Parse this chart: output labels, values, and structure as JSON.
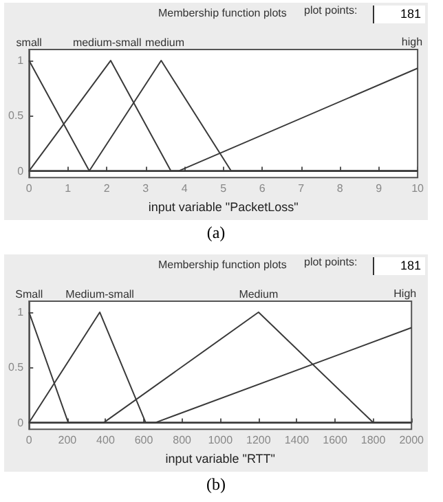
{
  "chart_data": [
    {
      "type": "line",
      "title": "Membership function plots",
      "xlabel": "input variable \"PacketLoss\"",
      "annotations": [
        "plot points:",
        "181",
        "(a)"
      ],
      "xlim": [
        0,
        10
      ],
      "xticks": [
        0,
        1,
        2,
        3,
        4,
        5,
        6,
        7,
        8,
        9,
        10
      ],
      "ylim": [
        -0.06,
        1.1
      ],
      "yticks": [
        0,
        0.5,
        1
      ],
      "series": [
        {
          "name": "small",
          "color": "#3a3a3a",
          "x": [
            0,
            1.55,
            10
          ],
          "values": [
            1,
            0,
            0
          ]
        },
        {
          "name": "medium-small",
          "color": "#3a3a3a",
          "x": [
            0,
            2.1,
            3.65,
            10
          ],
          "values": [
            0,
            1,
            0,
            0
          ]
        },
        {
          "name": "medium",
          "color": "#3a3a3a",
          "x": [
            0,
            1.55,
            3.4,
            5.2,
            10
          ],
          "values": [
            0,
            0,
            1,
            0,
            0
          ]
        },
        {
          "name": "high",
          "color": "#3a3a3a",
          "x": [
            0,
            3.85,
            10
          ],
          "values": [
            0,
            0,
            0.93
          ]
        }
      ]
    },
    {
      "type": "line",
      "title": "Membership function plots",
      "xlabel": "input variable \"RTT\"",
      "annotations": [
        "plot points:",
        "181",
        "(b)"
      ],
      "xlim": [
        0,
        2000
      ],
      "xticks": [
        0,
        200,
        400,
        600,
        800,
        1000,
        1200,
        1400,
        1600,
        1800,
        2000
      ],
      "ylim": [
        -0.06,
        1.1
      ],
      "yticks": [
        0,
        0.5,
        1
      ],
      "series": [
        {
          "name": "Small",
          "color": "#3a3a3a",
          "x": [
            0,
            205,
            2000
          ],
          "values": [
            1,
            0,
            0
          ]
        },
        {
          "name": "Medium-small",
          "color": "#3a3a3a",
          "x": [
            0,
            370,
            610,
            2000
          ],
          "values": [
            0,
            1,
            0,
            0
          ]
        },
        {
          "name": "Medium",
          "color": "#3a3a3a",
          "x": [
            0,
            390,
            1200,
            1800,
            2000
          ],
          "values": [
            0,
            0,
            1,
            0,
            0
          ]
        },
        {
          "name": "High",
          "color": "#3a3a3a",
          "x": [
            0,
            660,
            2000
          ],
          "values": [
            0,
            0,
            0.86
          ]
        }
      ]
    }
  ]
}
